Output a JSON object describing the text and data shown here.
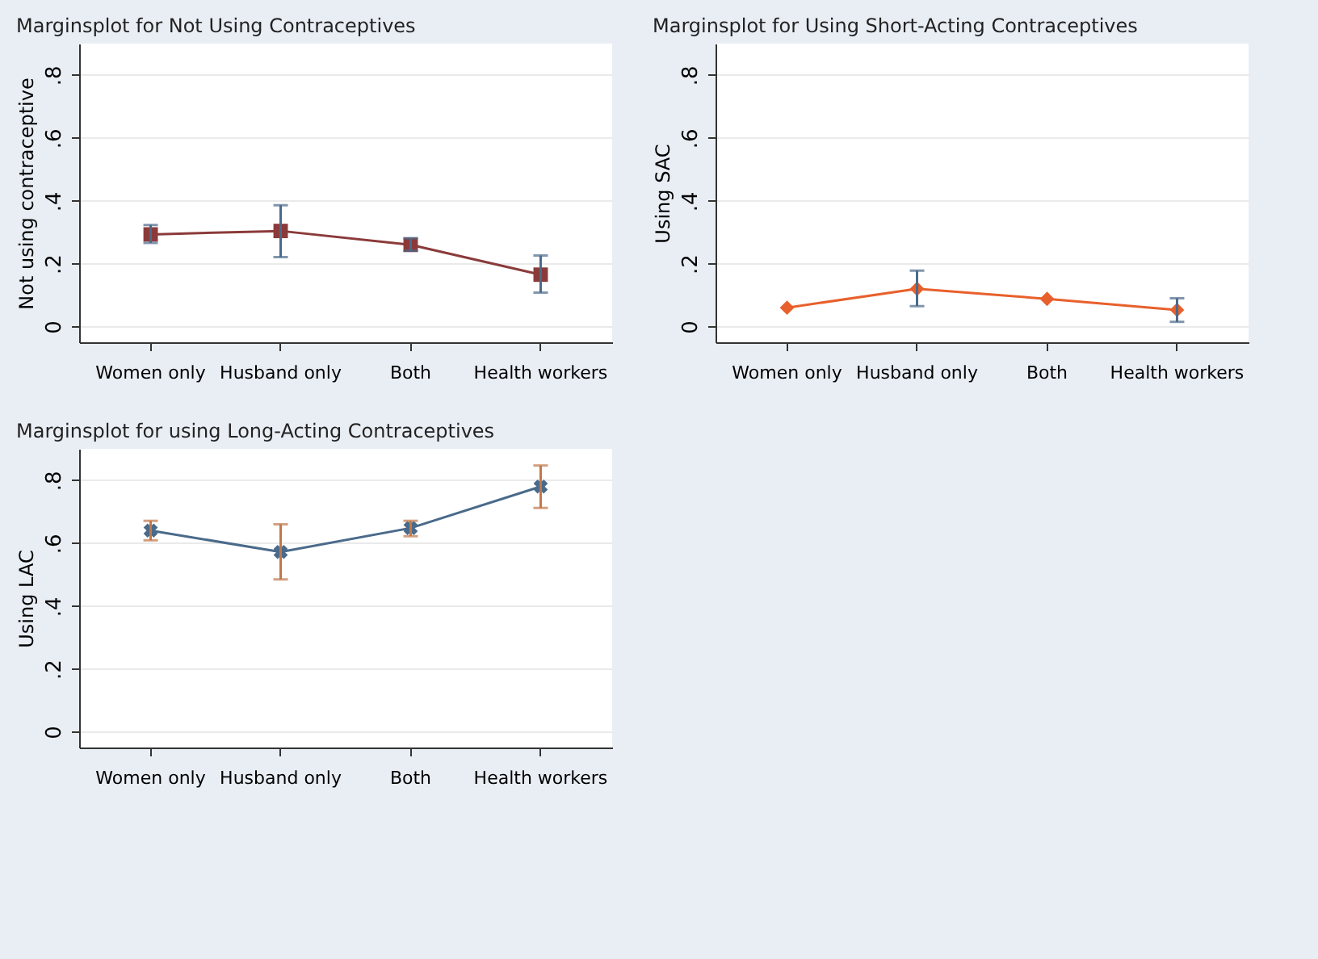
{
  "chart_data": [
    {
      "type": "line",
      "title": "Marginsplot for Not Using Contraceptives",
      "ylabel": "Not using contraceptive",
      "categories": [
        "Women only",
        "Husband only",
        "Both",
        "Health workers"
      ],
      "series": [
        {
          "color": "#8b3a3a",
          "values": [
            0.293,
            0.304,
            0.26,
            0.165
          ],
          "errors": [
            [
              0.266,
              0.323
            ],
            [
              0.221,
              0.386
            ],
            [
              0.241,
              0.281
            ],
            [
              0.108,
              0.226
            ]
          ]
        }
      ],
      "ylim": [
        -0.05,
        0.9
      ],
      "yticks": [
        {
          "value": 0,
          "label": "0"
        },
        {
          "value": 0.2,
          "label": ".2"
        },
        {
          "value": 0.4,
          "label": ".4"
        },
        {
          "value": 0.6,
          "label": ".6"
        },
        {
          "value": 0.8,
          "label": ".8"
        }
      ],
      "grid": "y",
      "marker": "square",
      "line_style": "solid"
    },
    {
      "type": "line",
      "title": "Marginsplot for Using Short-Acting Contraceptives",
      "ylabel": "Using SAC",
      "categories": [
        "Women only",
        "Husband only",
        "Both",
        "Health workers"
      ],
      "series": [
        {
          "color": "#e8602c",
          "values": [
            0.06,
            0.12,
            0.088,
            0.053
          ],
          "errors": [
            null,
            [
              0.065,
              0.178
            ],
            null,
            [
              0.015,
              0.09
            ]
          ]
        }
      ],
      "ylim": [
        -0.05,
        0.9
      ],
      "yticks": [
        {
          "value": 0,
          "label": "0"
        },
        {
          "value": 0.2,
          "label": ".2"
        },
        {
          "value": 0.4,
          "label": ".4"
        },
        {
          "value": 0.6,
          "label": ".6"
        },
        {
          "value": 0.8,
          "label": ".8"
        }
      ],
      "grid": "y",
      "marker": "diamond",
      "line_style": "solid"
    },
    {
      "type": "line",
      "title": "Marginsplot for using Long-Acting Contraceptives",
      "ylabel": "Using LAC",
      "categories": [
        "Women only",
        "Husband only",
        "Both",
        "Health workers"
      ],
      "series": [
        {
          "color": "#4a6a8a",
          "values": [
            0.64,
            0.572,
            0.648,
            0.78
          ],
          "errors": [
            [
              0.609,
              0.671
            ],
            [
              0.485,
              0.66
            ],
            [
              0.622,
              0.671
            ],
            [
              0.712,
              0.847
            ]
          ]
        }
      ],
      "ylim": [
        -0.05,
        0.9
      ],
      "yticks": [
        {
          "value": 0,
          "label": "0"
        },
        {
          "value": 0.2,
          "label": ".2"
        },
        {
          "value": 0.4,
          "label": ".4"
        },
        {
          "value": 0.6,
          "label": ".6"
        },
        {
          "value": 0.8,
          "label": ".8"
        }
      ],
      "grid": "y",
      "marker": "cross",
      "line_style": "solid"
    }
  ]
}
